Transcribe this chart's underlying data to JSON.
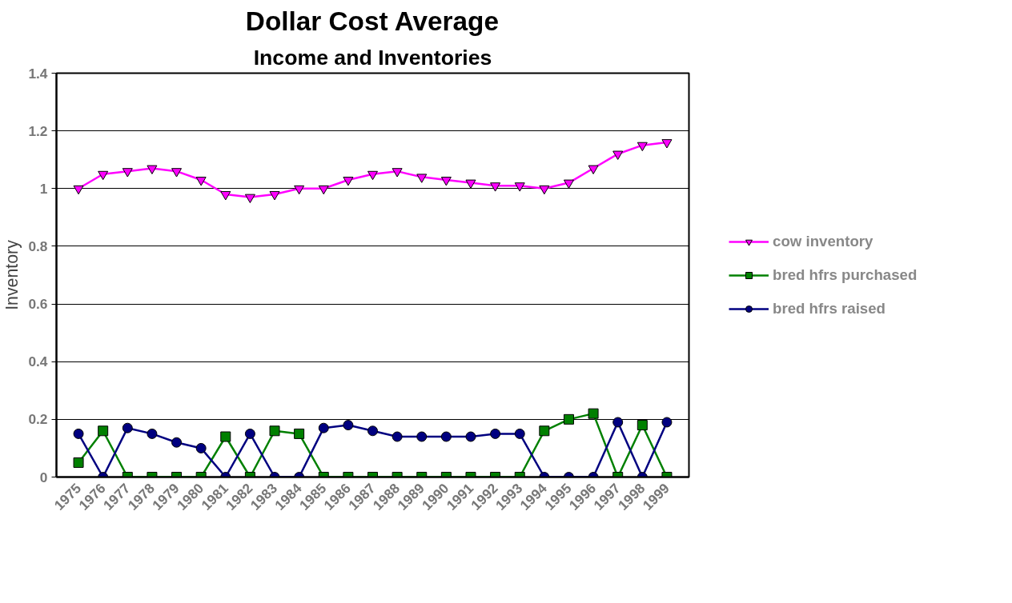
{
  "chart_data": {
    "type": "line",
    "title": "Dollar Cost Average",
    "subtitle": "Income and Inventories",
    "ylabel": "Inventory",
    "categories": [
      "1975",
      "1976",
      "1977",
      "1978",
      "1979",
      "1980",
      "1981",
      "1982",
      "1983",
      "1984",
      "1985",
      "1986",
      "1987",
      "1988",
      "1989",
      "1990",
      "1991",
      "1992",
      "1993",
      "1994",
      "1995",
      "1996",
      "1997",
      "1998",
      "1999"
    ],
    "series": [
      {
        "name": "cow inventory",
        "color": "#ff00ff",
        "marker": "triangle",
        "values": [
          1.0,
          1.05,
          1.06,
          1.07,
          1.06,
          1.03,
          0.98,
          0.97,
          0.98,
          1.0,
          1.0,
          1.03,
          1.05,
          1.06,
          1.04,
          1.03,
          1.02,
          1.01,
          1.01,
          1.0,
          1.02,
          1.07,
          1.12,
          1.15,
          1.16
        ]
      },
      {
        "name": "bred hfrs purchased",
        "color": "#008000",
        "marker": "square",
        "values": [
          0.05,
          0.16,
          0,
          0,
          0,
          0,
          0.14,
          0,
          0.16,
          0.15,
          0,
          0,
          0,
          0,
          0,
          0,
          0,
          0,
          0,
          0.16,
          0.2,
          0.22,
          0,
          0.18,
          0
        ]
      },
      {
        "name": "bred hfrs raised",
        "color": "#000080",
        "marker": "circle",
        "values": [
          0.15,
          0,
          0.17,
          0.15,
          0.12,
          0.1,
          0,
          0.15,
          0,
          0,
          0.17,
          0.18,
          0.16,
          0.14,
          0.14,
          0.14,
          0.14,
          0.15,
          0.15,
          0,
          0,
          0,
          0.19,
          0,
          0.19
        ]
      }
    ],
    "ylim": [
      0,
      1.4
    ],
    "yticks": [
      0,
      0.2,
      0.4,
      0.6,
      0.8,
      1,
      1.2,
      1.4
    ],
    "grid": "y",
    "legend": "right"
  }
}
